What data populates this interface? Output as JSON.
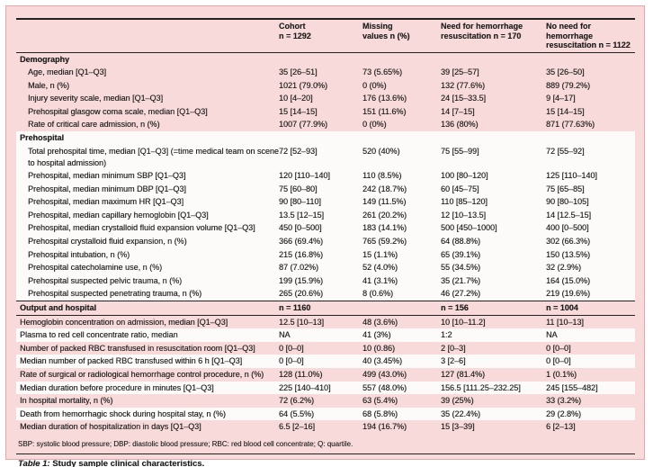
{
  "colors": {
    "pink_fill": "#f8dada",
    "stripe_white": "#fdfbfa",
    "frame_border": "#e8a6aa",
    "rule_black": "#222222"
  },
  "table": {
    "columns": [
      {
        "lines": [
          "Cohort",
          "n = 1292"
        ]
      },
      {
        "lines": [
          "Missing",
          "values n (%)"
        ]
      },
      {
        "lines": [
          "Need for hemorrhage",
          "resuscitation n = 170"
        ]
      },
      {
        "lines": [
          "No need for hemorrhage",
          "resuscitation n = 1122"
        ]
      }
    ],
    "rows": [
      {
        "type": "section",
        "bg": "pink",
        "indent": false,
        "label": "Demography",
        "values": [
          "",
          "",
          "",
          ""
        ]
      },
      {
        "type": "data",
        "bg": "pink",
        "indent": true,
        "label": "Age, median [Q1–Q3]",
        "values": [
          "35 [26–51]",
          "73 (5.65%)",
          "39 [25–57]",
          "35 [26–50]"
        ]
      },
      {
        "type": "data",
        "bg": "pink",
        "indent": true,
        "label": "Male, n (%)",
        "values": [
          "1021 (79.0%)",
          "0 (0%)",
          "132 (77.6%)",
          "889 (79.2%)"
        ]
      },
      {
        "type": "data",
        "bg": "pink",
        "indent": true,
        "label": "Injury severity scale, median [Q1–Q3]",
        "values": [
          "10 [4–20]",
          "176 (13.6%)",
          "24 [15–33.5]",
          "9 [4–17]"
        ]
      },
      {
        "type": "data",
        "bg": "pink",
        "indent": true,
        "label": "Prehospital glasgow coma scale, median [Q1–Q3]",
        "values": [
          "15 [14–15]",
          "151 (11.6%)",
          "14 [7–15]",
          "15 [14–15]"
        ]
      },
      {
        "type": "data",
        "bg": "pink",
        "indent": true,
        "label": "Rate of critical care admission, n (%)",
        "values": [
          "1007 (77.9%)",
          "0 (0%)",
          "136 (80%)",
          "871 (77.63%)"
        ]
      },
      {
        "type": "section",
        "bg": "white",
        "indent": false,
        "label": "Prehospital",
        "values": [
          "",
          "",
          "",
          ""
        ]
      },
      {
        "type": "data",
        "bg": "white",
        "indent": true,
        "label": "Total prehospital time, median [Q1–Q3] (=time medical team on scene to hospital admission)",
        "values": [
          "72 [52–93]",
          "520 (40%)",
          "75 [55–99]",
          "72 [55–92]"
        ]
      },
      {
        "type": "data",
        "bg": "white",
        "indent": true,
        "label": "Prehospital, median minimum SBP [Q1–Q3]",
        "values": [
          "120 [110–140]",
          "110 (8.5%)",
          "100 [80–120]",
          "125 [110–140]"
        ]
      },
      {
        "type": "data",
        "bg": "white",
        "indent": true,
        "label": "Prehospital, median minimum DBP [Q1–Q3]",
        "values": [
          "75 [60–80]",
          "242 (18.7%)",
          "60 [45–75]",
          "75 [65–85]"
        ]
      },
      {
        "type": "data",
        "bg": "white",
        "indent": true,
        "label": "Prehospital, median maximum HR [Q1–Q3]",
        "values": [
          "90 [80–110]",
          "149 (11.5%)",
          "110 [85–120]",
          "90 [80–105]"
        ]
      },
      {
        "type": "data",
        "bg": "white",
        "indent": true,
        "label": "Prehospital, median capillary hemoglobin [Q1–Q3]",
        "values": [
          "13.5 [12–15]",
          "261 (20.2%)",
          "12 [10–13.5]",
          "14 [12.5–15]"
        ]
      },
      {
        "type": "data",
        "bg": "white",
        "indent": true,
        "label": "Prehospital, median crystalloid fluid expansion volume [Q1–Q3]",
        "values": [
          "450 [0–500]",
          "183 (14.1%)",
          "500 [450–1000]",
          "400 [0–500]"
        ]
      },
      {
        "type": "data",
        "bg": "white",
        "indent": true,
        "label": "Prehospital crystalloid fluid expansion, n (%)",
        "values": [
          "366 (69.4%)",
          "765 (59.2%)",
          "64 (88.8%)",
          "302 (66.3%)"
        ]
      },
      {
        "type": "data",
        "bg": "white",
        "indent": true,
        "label": "Prehospital intubation, n (%)",
        "values": [
          "215 (16.8%)",
          "15 (1.1%)",
          "65 (39.1%)",
          "150 (13.5%)"
        ]
      },
      {
        "type": "data",
        "bg": "white",
        "indent": true,
        "label": "Prehospital catecholamine use, n (%)",
        "values": [
          "87 (7.02%)",
          "52 (4.0%)",
          "55 (34.5%)",
          "32 (2.9%)"
        ]
      },
      {
        "type": "data",
        "bg": "white",
        "indent": true,
        "label": "Prehospital suspected pelvic trauma, n (%)",
        "values": [
          "199 (15.9%)",
          "41 (3.1%)",
          "35 (21.7%)",
          "164 (15.0%)"
        ]
      },
      {
        "type": "data",
        "bg": "white",
        "indent": true,
        "label": "Prehospital suspected penetrating trauma, n (%)",
        "values": [
          "265 (20.6%)",
          "8 (0.6%)",
          "46 (27.2%)",
          "219 (19.6%)"
        ]
      },
      {
        "type": "section",
        "bg": "pink",
        "indent": false,
        "rules": true,
        "label": "Output and hospital",
        "values": [
          "n = 1160",
          "",
          "n = 156",
          "n = 1004"
        ]
      },
      {
        "type": "data",
        "bg": "pink",
        "indent": false,
        "label": "Hemoglobin concentration on admission, median [Q1–Q3]",
        "values": [
          "12.5 [10–13]",
          "48 (3.6%)",
          "10 [10–11.2]",
          "11 [10–13]"
        ]
      },
      {
        "type": "data",
        "bg": "white",
        "indent": false,
        "label": "Plasma to red cell concentrate ratio, median",
        "values": [
          "NA",
          "41 (3%)",
          "1:2",
          "NA"
        ]
      },
      {
        "type": "data",
        "bg": "pink",
        "indent": false,
        "label": "Number of packed RBC transfused in resuscitation room [Q1–Q3]",
        "values": [
          "0 [0–0]",
          "10 (0.86)",
          "2 [0–3]",
          "0 [0–0]"
        ]
      },
      {
        "type": "data",
        "bg": "white",
        "indent": false,
        "label": "Median number of packed RBC transfused within 6 h [Q1–Q3]",
        "values": [
          "0 [0–0]",
          "40 (3.45%)",
          "3 [2–6]",
          "0 [0–0]"
        ]
      },
      {
        "type": "data",
        "bg": "pink",
        "indent": false,
        "label": "Rate of surgical or radiological hemorrhage control procedure, n (%)",
        "values": [
          "128 (11.0%)",
          "499 (43.0%)",
          "127 (81.4%)",
          "1 (0.1%)"
        ]
      },
      {
        "type": "data",
        "bg": "white",
        "indent": false,
        "label": "Median duration before procedure in minutes [Q1–Q3]",
        "values": [
          "225 [140–410]",
          "557 (48.0%)",
          "156.5 [111.25–232.25]",
          "245 [155–482]"
        ]
      },
      {
        "type": "data",
        "bg": "pink",
        "indent": false,
        "label": "In hospital mortality, n (%)",
        "values": [
          "72 (6.2%)",
          "63 (5.4%)",
          "39 (25%)",
          "33 (3.2%)"
        ]
      },
      {
        "type": "data",
        "bg": "white",
        "indent": false,
        "label": "Death from hemorrhagic shock during hospital stay, n (%)",
        "values": [
          "64 (5.5%)",
          "68 (5.8%)",
          "35 (22.4%)",
          "29 (2.8%)"
        ]
      },
      {
        "type": "data",
        "bg": "pink",
        "indent": false,
        "label": "Median duration of hospitalization in days [Q1–Q3]",
        "values": [
          "6.5 [2–16]",
          "194 (16.7%)",
          "15 [3–39]",
          "6 [2–13]"
        ]
      }
    ],
    "footnote": "SBP: systolic blood pressure; DBP: diastolic blood pressure; RBC: red blood cell concentrate; Q: quartile.",
    "caption_label": "Table 1:",
    "caption_text": "Study sample clinical characteristics."
  }
}
